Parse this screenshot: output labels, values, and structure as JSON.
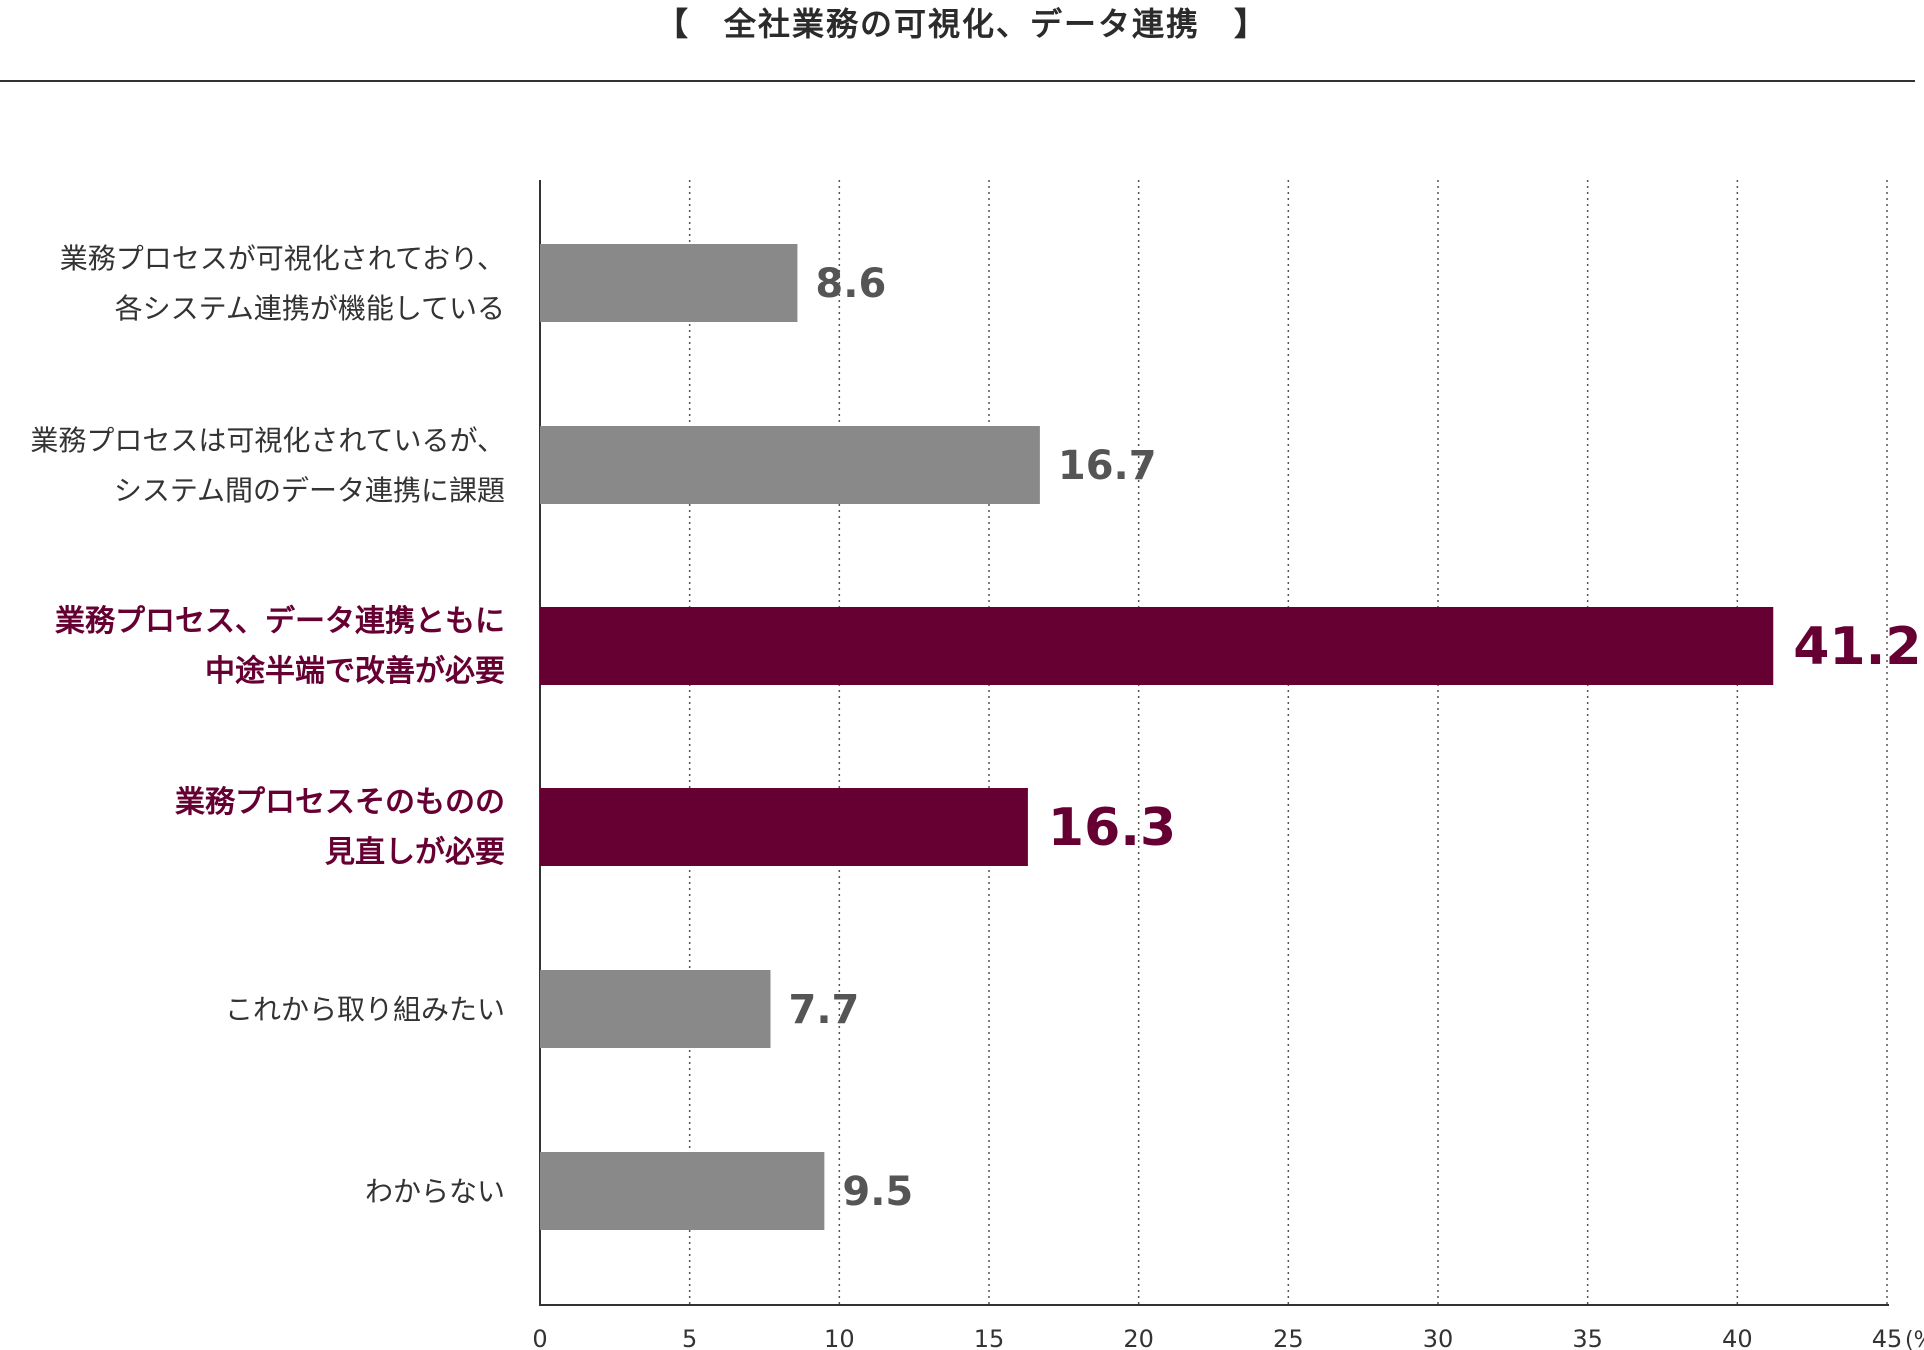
{
  "title": "【　全社業務の可視化、データ連携　】",
  "chart_data": {
    "type": "bar",
    "orientation": "horizontal",
    "title": "全社業務の可視化、データ連携",
    "categories": [
      [
        "業務プロセスが可視化されており、",
        "各システム連携が機能している"
      ],
      [
        "業務プロセスは可視化されているが、",
        "システム間のデータ連携に課題"
      ],
      [
        "業務プロセス、データ連携ともに",
        "中途半端で改善が必要"
      ],
      [
        "業務プロセスそのものの",
        "見直しが必要"
      ],
      [
        "これから取り組みたい"
      ],
      [
        "わからない"
      ]
    ],
    "values": [
      8.6,
      16.7,
      41.2,
      16.3,
      7.7,
      9.5
    ],
    "value_labels": [
      "8.6",
      "16.7",
      "41.2",
      "16.3",
      "7.7",
      "9.5"
    ],
    "highlighted": [
      false,
      false,
      true,
      true,
      false,
      false
    ],
    "xlim": [
      0,
      45
    ],
    "xticks": [
      0,
      5,
      10,
      15,
      20,
      25,
      30,
      35,
      40,
      45
    ],
    "unit_label": "(%)",
    "grid": "vertical-dotted",
    "colors": {
      "normal": "#898989",
      "highlight": "#660033",
      "normal_text": "#555555",
      "axis": "#333333"
    }
  }
}
